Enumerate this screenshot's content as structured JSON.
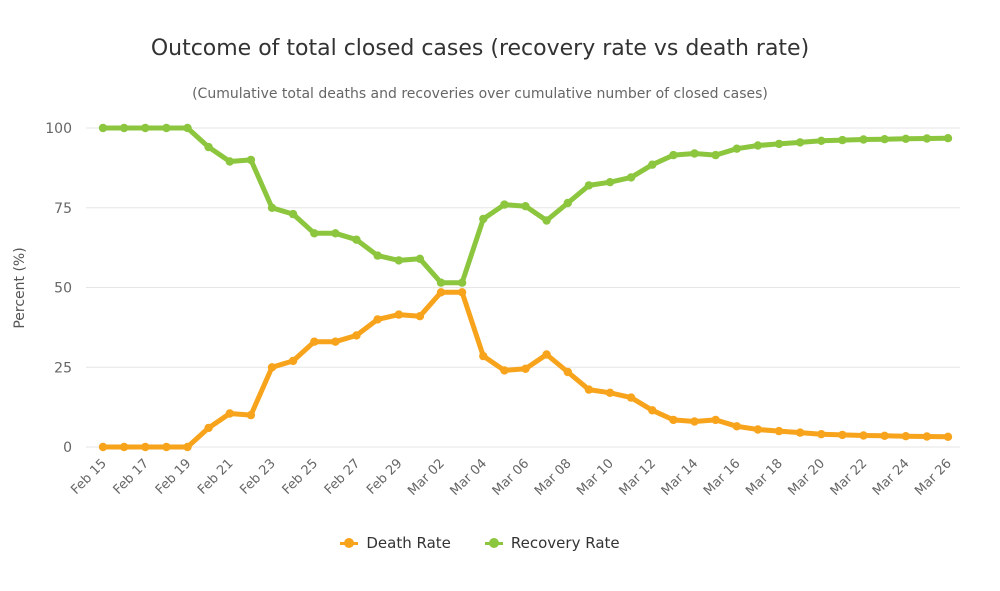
{
  "chart_data": {
    "type": "line",
    "title": "Outcome of total closed cases (recovery rate vs death rate)",
    "subtitle": "(Cumulative total deaths and recoveries over cumulative number of closed cases)",
    "xlabel": "",
    "ylabel": "Percent (%)",
    "ylim": [
      0,
      100
    ],
    "yticks": [
      0,
      25,
      50,
      75,
      100
    ],
    "grid": true,
    "legend_position": "bottom",
    "categories": [
      "Feb 15",
      "Feb 16",
      "Feb 17",
      "Feb 18",
      "Feb 19",
      "Feb 20",
      "Feb 21",
      "Feb 22",
      "Feb 23",
      "Feb 24",
      "Feb 25",
      "Feb 26",
      "Feb 27",
      "Feb 28",
      "Feb 29",
      "Mar 01",
      "Mar 02",
      "Mar 03",
      "Mar 04",
      "Mar 05",
      "Mar 06",
      "Mar 07",
      "Mar 08",
      "Mar 09",
      "Mar 10",
      "Mar 11",
      "Mar 12",
      "Mar 13",
      "Mar 14",
      "Mar 15",
      "Mar 16",
      "Mar 17",
      "Mar 18",
      "Mar 19",
      "Mar 20",
      "Mar 21",
      "Mar 22",
      "Mar 23",
      "Mar 24",
      "Mar 25",
      "Mar 26"
    ],
    "tick_labels": [
      "Feb 15",
      "Feb 17",
      "Feb 19",
      "Feb 21",
      "Feb 23",
      "Feb 25",
      "Feb 27",
      "Feb 29",
      "Mar 02",
      "Mar 04",
      "Mar 06",
      "Mar 08",
      "Mar 10",
      "Mar 12",
      "Mar 14",
      "Mar 16",
      "Mar 18",
      "Mar 20",
      "Mar 22",
      "Mar 24",
      "Mar 26"
    ],
    "series": [
      {
        "name": "Death Rate",
        "color": "#f7a31c",
        "values": [
          0,
          0,
          0,
          0,
          0,
          6,
          10.5,
          10,
          25,
          27,
          33,
          33,
          35,
          40,
          41.5,
          41,
          48.5,
          48.5,
          28.5,
          24,
          24.5,
          29,
          23.5,
          18,
          17,
          15.5,
          11.5,
          8.5,
          8,
          8.5,
          6.5,
          5.5,
          5,
          4.5,
          4,
          3.8,
          3.6,
          3.5,
          3.4,
          3.3,
          3.2
        ]
      },
      {
        "name": "Recovery Rate",
        "color": "#8cc63e",
        "values": [
          100,
          100,
          100,
          100,
          100,
          94,
          89.5,
          90,
          75,
          73,
          67,
          67,
          65,
          60,
          58.5,
          59,
          51.5,
          51.5,
          71.5,
          76,
          75.5,
          71,
          76.5,
          82,
          83,
          84.5,
          88.5,
          91.5,
          92,
          91.5,
          93.5,
          94.5,
          95,
          95.5,
          96,
          96.2,
          96.4,
          96.5,
          96.6,
          96.7,
          96.8
        ]
      }
    ]
  }
}
